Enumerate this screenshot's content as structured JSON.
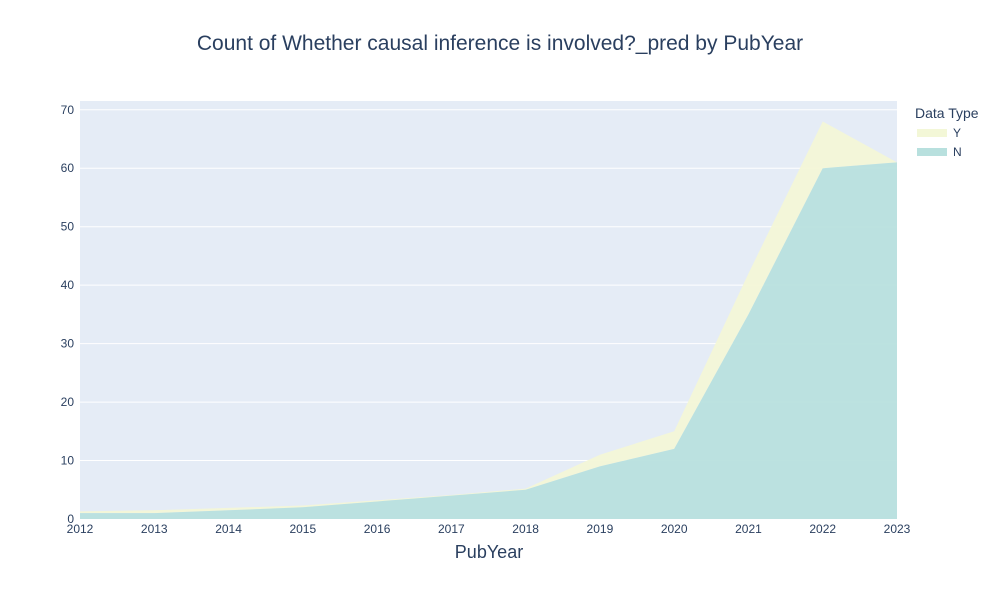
{
  "chart_data": {
    "type": "area",
    "title": "Count of Whether causal inference is involved?_pred by PubYear",
    "xlabel": "PubYear",
    "ylabel": "",
    "x": [
      2012,
      2013,
      2014,
      2015,
      2016,
      2017,
      2018,
      2019,
      2020,
      2021,
      2022,
      2023
    ],
    "xlim": [
      2012,
      2023
    ],
    "ylim": [
      0,
      71.5
    ],
    "yticks": [
      0,
      10,
      20,
      30,
      40,
      50,
      60,
      70
    ],
    "stacked": true,
    "grid": true,
    "legend": {
      "title": "Data Type",
      "placement": "top-right"
    },
    "series": [
      {
        "name": "N",
        "color": "#b8e0de",
        "values": [
          1,
          1,
          1.5,
          2,
          3,
          4,
          5,
          9,
          12,
          35,
          60,
          61
        ]
      },
      {
        "name": "Y",
        "color": "#f3f7d7",
        "values": [
          0.3,
          0.5,
          0.4,
          0.3,
          0.2,
          0.1,
          0.2,
          2,
          3,
          7,
          8,
          0
        ]
      }
    ]
  }
}
